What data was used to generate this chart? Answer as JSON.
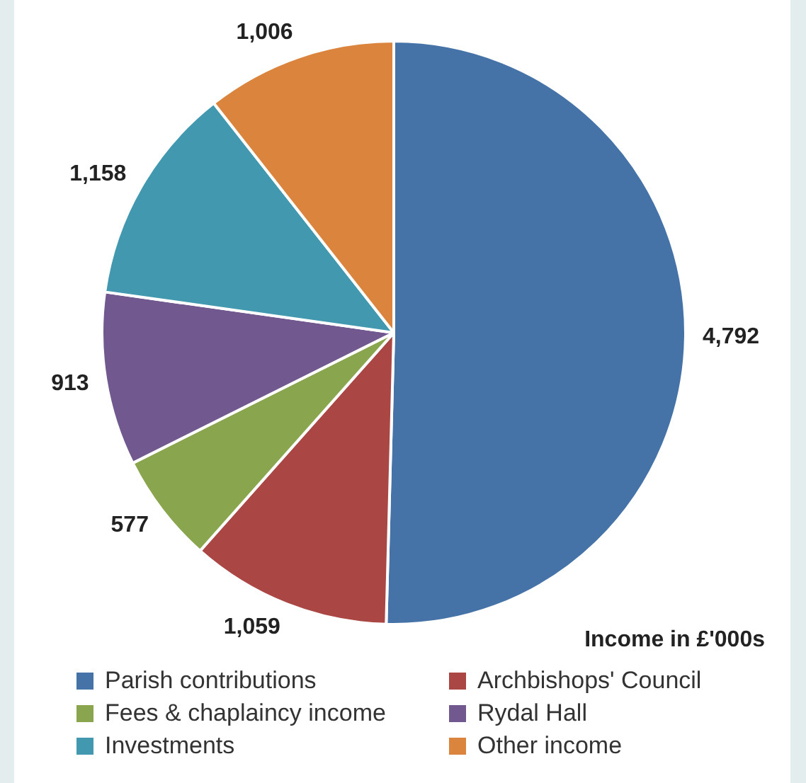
{
  "chart_data": {
    "type": "pie",
    "categories": [
      "Parish contributions",
      "Archbishops' Council",
      "Fees & chaplaincy income",
      "Rydal Hall",
      "Investments",
      "Other income"
    ],
    "values": [
      4792,
      1059,
      577,
      913,
      1158,
      1006
    ],
    "colors": [
      "#4572a7",
      "#aa4643",
      "#89a54e",
      "#71588f",
      "#4198af",
      "#db843d"
    ],
    "value_labels": [
      "4,792",
      "1,059",
      "577",
      "913",
      "1,158",
      "1,006"
    ],
    "legend": "bottom",
    "annotations": [
      "Income in £'000s"
    ]
  }
}
